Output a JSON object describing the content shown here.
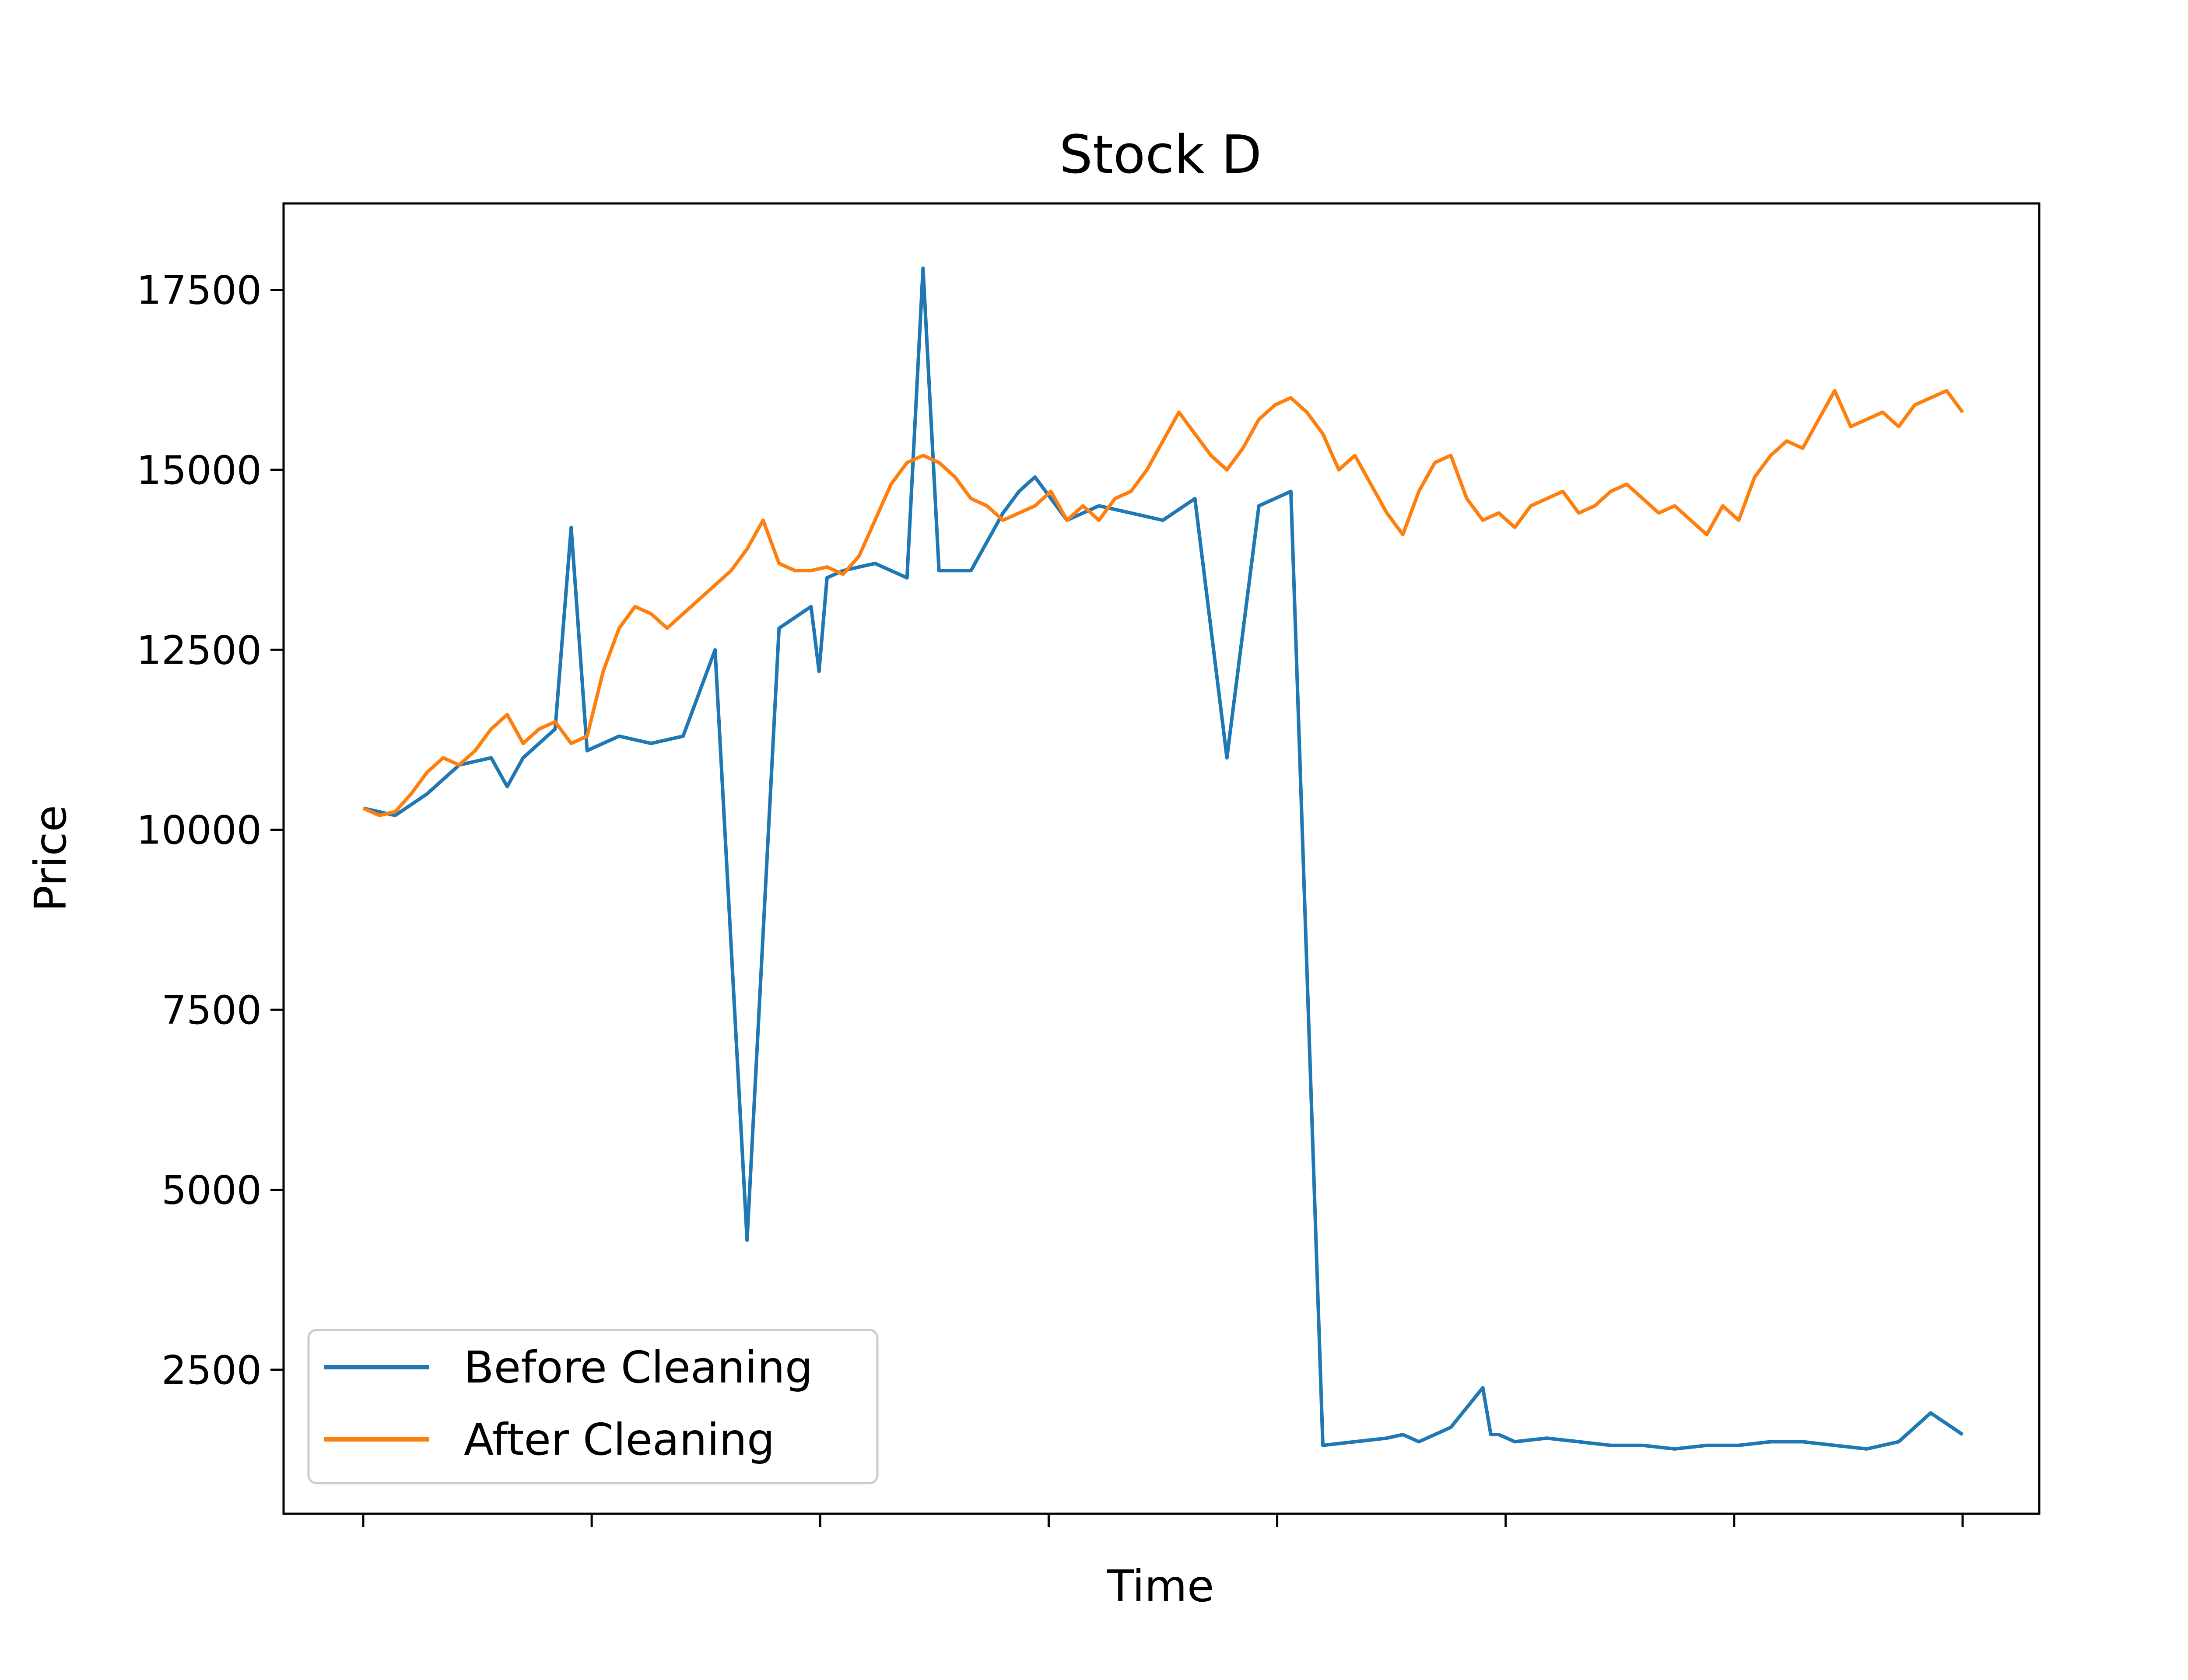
{
  "chart_data": {
    "type": "line",
    "title": "Stock D",
    "xlabel": "Time",
    "ylabel": "Price",
    "ylim": [
      500,
      18700
    ],
    "yticks": [
      "2500",
      "5000",
      "7500",
      "10000",
      "12500",
      "15000",
      "17500"
    ],
    "x_tick_count": 8,
    "x_tick_labels_shown": false,
    "grid": false,
    "legend_position": "lower-left",
    "series": [
      {
        "name": "Before Cleaning",
        "color": "#1f77b4",
        "x": [
          0,
          2,
          4,
          6,
          8,
          9,
          10,
          12,
          13,
          14,
          16,
          18,
          20,
          22,
          24,
          26,
          28,
          28.5,
          29,
          30,
          32,
          34,
          35,
          36,
          38,
          40,
          41,
          42,
          44,
          45,
          46,
          48,
          50,
          52,
          54,
          56,
          58,
          60,
          62,
          64,
          65,
          66,
          68,
          70,
          70.5,
          71,
          72,
          74,
          76,
          78,
          80,
          82,
          84,
          86,
          88,
          90,
          92,
          94,
          96,
          98,
          100
        ],
        "y": [
          10300,
          10200,
          10500,
          10900,
          11000,
          10600,
          11000,
          11400,
          14200,
          11100,
          11300,
          11200,
          11300,
          12500,
          4300,
          12800,
          13100,
          12200,
          13500,
          13600,
          13700,
          13500,
          17800,
          13600,
          13600,
          14400,
          14700,
          14900,
          14300,
          14400,
          14500,
          14400,
          14300,
          14600,
          11000,
          14500,
          14700,
          1450,
          1500,
          1550,
          1600,
          1500,
          1700,
          2250,
          1600,
          1600,
          1500,
          1550,
          1500,
          1450,
          1450,
          1400,
          1450,
          1450,
          1500,
          1500,
          1450,
          1400,
          1500,
          1900,
          1600
        ]
      },
      {
        "name": "After Cleaning",
        "color": "#ff7f0e",
        "x": [
          0,
          1,
          2,
          3,
          4,
          5,
          6,
          7,
          8,
          9,
          10,
          11,
          12,
          13,
          14,
          15,
          16,
          17,
          18,
          19,
          20,
          21,
          22,
          23,
          24,
          25,
          26,
          27,
          28,
          29,
          30,
          31,
          32,
          33,
          34,
          35,
          36,
          37,
          38,
          39,
          40,
          41,
          42,
          43,
          44,
          45,
          46,
          47,
          48,
          49,
          50,
          51,
          52,
          53,
          54,
          55,
          56,
          57,
          58,
          59,
          60,
          61,
          62,
          63,
          64,
          65,
          66,
          67,
          68,
          69,
          70,
          71,
          72,
          73,
          74,
          75,
          76,
          77,
          78,
          79,
          80,
          81,
          82,
          83,
          84,
          85,
          86,
          87,
          88,
          89,
          90,
          91,
          92,
          93,
          94,
          95,
          96,
          97,
          98,
          99,
          100
        ],
        "y": [
          10300,
          10200,
          10250,
          10500,
          10800,
          11000,
          10900,
          11100,
          11400,
          11600,
          11200,
          11400,
          11500,
          11200,
          11300,
          12200,
          12800,
          13100,
          13000,
          12800,
          13000,
          13200,
          13400,
          13600,
          13900,
          14300,
          13700,
          13600,
          13600,
          13650,
          13550,
          13800,
          14300,
          14800,
          15100,
          15200,
          15100,
          14900,
          14600,
          14500,
          14300,
          14400,
          14500,
          14700,
          14300,
          14500,
          14300,
          14600,
          14700,
          15000,
          15400,
          15800,
          15500,
          15200,
          15000,
          15300,
          15700,
          15900,
          16000,
          15800,
          15500,
          15000,
          15200,
          14800,
          14400,
          14100,
          14700,
          15100,
          15200,
          14600,
          14300,
          14400,
          14200,
          14500,
          14600,
          14700,
          14400,
          14500,
          14700,
          14800,
          14600,
          14400,
          14500,
          14300,
          14100,
          14500,
          14300,
          14900,
          15200,
          15400,
          15300,
          15700,
          16100,
          15600,
          15700,
          15800,
          15600,
          15900,
          16000,
          16100,
          15800
        ]
      }
    ]
  }
}
